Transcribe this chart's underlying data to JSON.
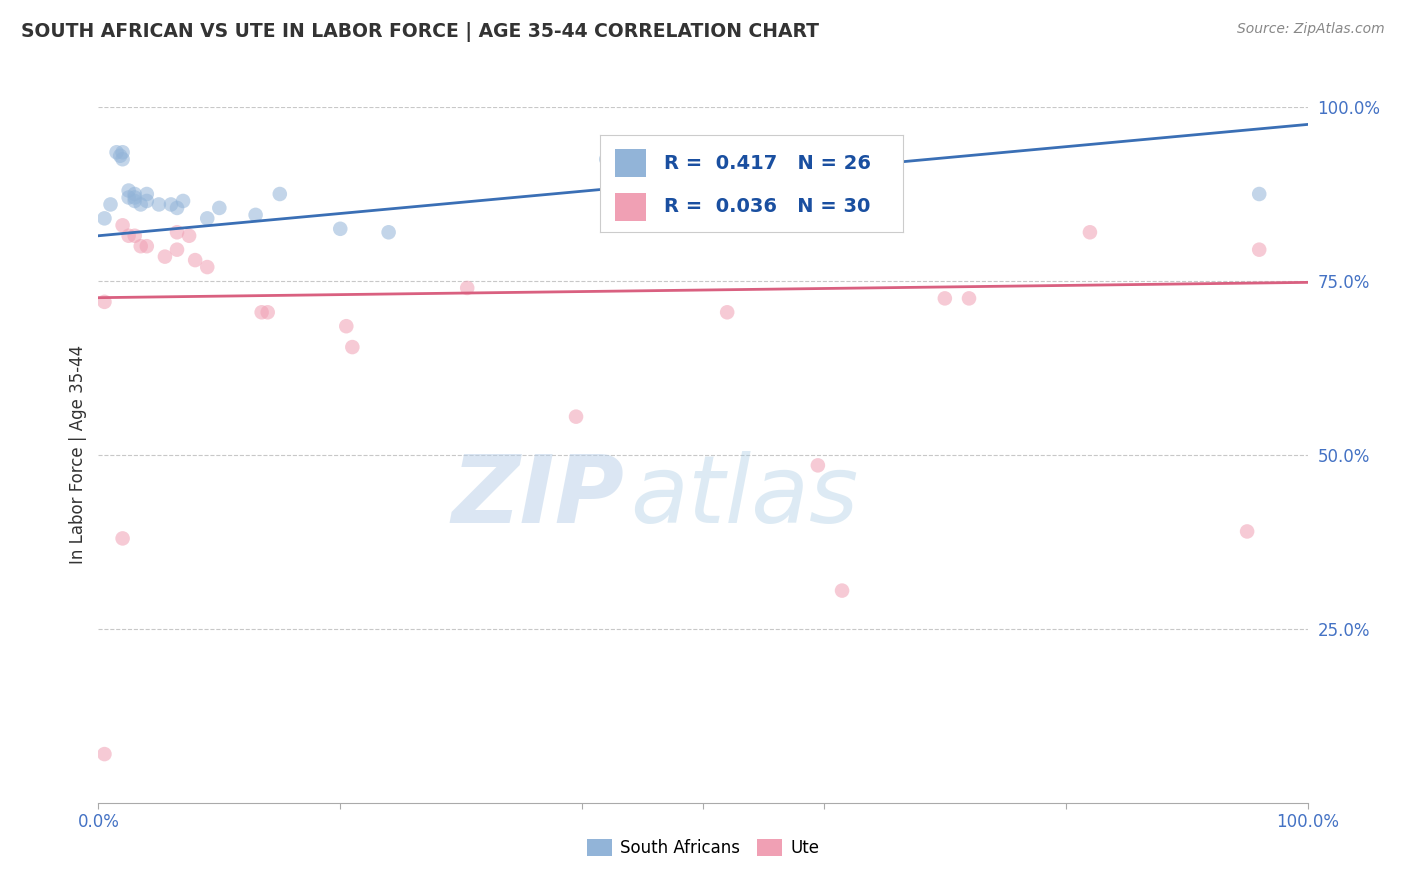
{
  "title": "SOUTH AFRICAN VS UTE IN LABOR FORCE | AGE 35-44 CORRELATION CHART",
  "source_text": "Source: ZipAtlas.com",
  "ylabel": "In Labor Force | Age 35-44",
  "xlim": [
    0,
    1
  ],
  "ylim": [
    0,
    1
  ],
  "yticks": [
    0.25,
    0.5,
    0.75,
    1.0
  ],
  "ytick_labels": [
    "25.0%",
    "50.0%",
    "75.0%",
    "100.0%"
  ],
  "xticks": [
    0.0,
    0.2,
    0.4,
    0.5,
    0.6,
    0.8,
    1.0
  ],
  "xtick_labels": [
    "0.0%",
    "",
    "",
    "",
    "",
    "",
    "100.0%"
  ],
  "blue_R": 0.417,
  "blue_N": 26,
  "pink_R": 0.036,
  "pink_N": 30,
  "blue_scatter_x": [
    0.005,
    0.01,
    0.015,
    0.018,
    0.02,
    0.02,
    0.025,
    0.025,
    0.03,
    0.03,
    0.03,
    0.035,
    0.04,
    0.04,
    0.05,
    0.06,
    0.065,
    0.07,
    0.09,
    0.1,
    0.13,
    0.15,
    0.2,
    0.24,
    0.42,
    0.96
  ],
  "blue_scatter_y": [
    0.84,
    0.86,
    0.935,
    0.93,
    0.935,
    0.925,
    0.88,
    0.87,
    0.875,
    0.87,
    0.865,
    0.86,
    0.875,
    0.865,
    0.86,
    0.86,
    0.855,
    0.865,
    0.84,
    0.855,
    0.845,
    0.875,
    0.825,
    0.82,
    0.925,
    0.875
  ],
  "pink_scatter_x": [
    0.005,
    0.02,
    0.025,
    0.03,
    0.035,
    0.04,
    0.055,
    0.065,
    0.065,
    0.075,
    0.08,
    0.09,
    0.135,
    0.14,
    0.205,
    0.21,
    0.305,
    0.395,
    0.52,
    0.595,
    0.615,
    0.7,
    0.72,
    0.82,
    0.95,
    0.96
  ],
  "pink_scatter_y": [
    0.72,
    0.83,
    0.815,
    0.815,
    0.8,
    0.8,
    0.785,
    0.82,
    0.795,
    0.815,
    0.78,
    0.77,
    0.705,
    0.705,
    0.685,
    0.655,
    0.74,
    0.555,
    0.705,
    0.485,
    0.305,
    0.725,
    0.725,
    0.82,
    0.39,
    0.795
  ],
  "pink_extra_x": [
    0.02
  ],
  "pink_extra_y": [
    0.38
  ],
  "pink_low_x": [
    0.005
  ],
  "pink_low_y": [
    0.07
  ],
  "blue_line_x0": 0.0,
  "blue_line_x1": 1.0,
  "blue_line_y0": 0.815,
  "blue_line_y1": 0.975,
  "pink_line_x0": 0.0,
  "pink_line_x1": 1.0,
  "pink_line_y0": 0.726,
  "pink_line_y1": 0.748,
  "blue_color": "#92b4d8",
  "blue_line_color": "#3a6fb5",
  "pink_color": "#f0a0b4",
  "pink_line_color": "#d96080",
  "scatter_size": 110,
  "scatter_alpha": 0.55,
  "watermark_zip": "ZIP",
  "watermark_atlas": "atlas",
  "legend_label_blue": "South Africans",
  "legend_label_pink": "Ute",
  "background_color": "#ffffff",
  "grid_color": "#c8c8c8",
  "tick_color": "#4472c4",
  "title_color": "#333333",
  "source_color": "#888888"
}
